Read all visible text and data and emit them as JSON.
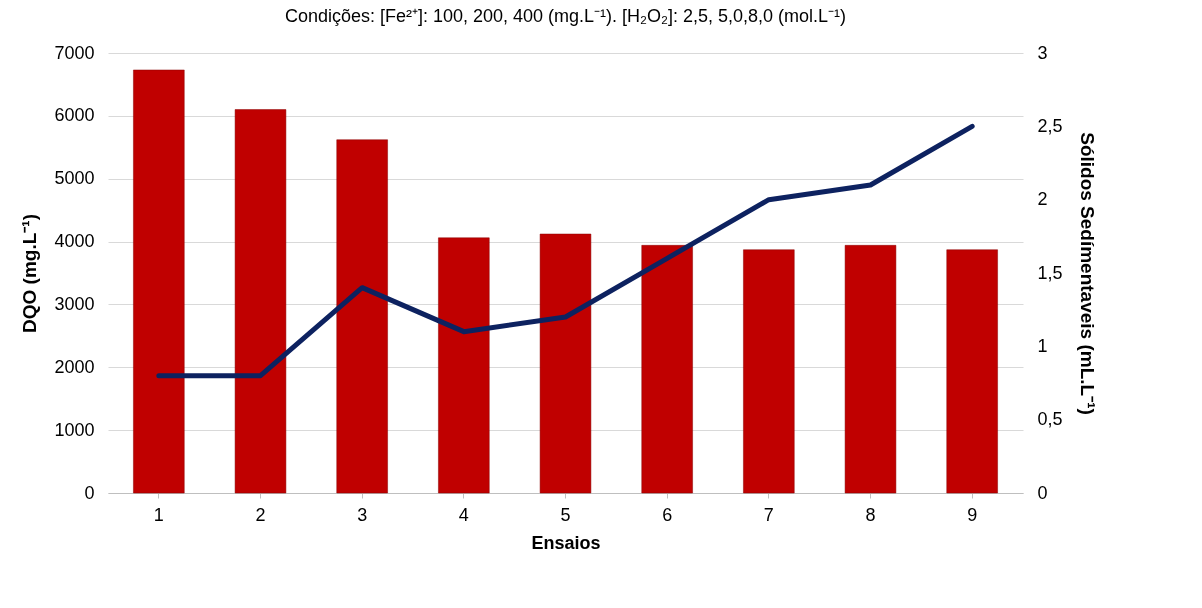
{
  "chart_data": {
    "type": "bar",
    "title": "Condições: [Fe²⁺]: 100, 200, 400 (mg.L⁻¹). [H₂O₂]: 2,5, 5,0,8,0 (mol.L⁻¹)",
    "xlabel": "Ensaios",
    "ylabel": "DQO (mg.L⁻¹)",
    "y2label": "Sólidos Sedímentaveis  (mL.L⁻¹)",
    "categories": [
      "1",
      "2",
      "3",
      "4",
      "5",
      "6",
      "7",
      "8",
      "9"
    ],
    "series": [
      {
        "color": "#c00000",
        "values": [
          6730,
          6100,
          5620,
          4060,
          4120,
          3940,
          3870,
          3940,
          3870
        ]
      },
      {
        "type": "line",
        "axis": "y2",
        "color": "#0d2260",
        "values": [
          0.8,
          0.8,
          1.4,
          1.1,
          1.2,
          1.6,
          2.0,
          2.1,
          2.5
        ]
      }
    ],
    "ylim": [
      0,
      7000
    ],
    "yticks": [
      0,
      1000,
      2000,
      3000,
      4000,
      5000,
      6000,
      7000
    ],
    "y2lim": [
      0,
      3
    ],
    "y2ticks": [
      0,
      {
        "value": 0.5,
        "label": "0,5"
      },
      1,
      {
        "value": 1.5,
        "label": "1,5"
      },
      2,
      {
        "value": 2.5,
        "label": "2,5"
      },
      3
    ],
    "grid": "y",
    "legend": false,
    "marker": "none",
    "line_style": "solid"
  }
}
